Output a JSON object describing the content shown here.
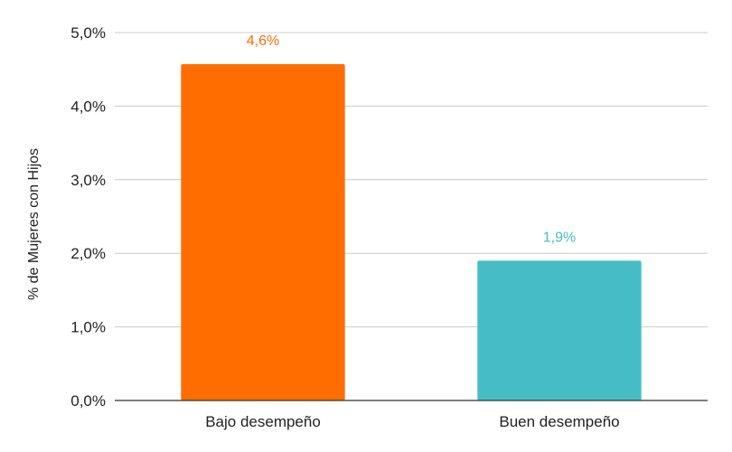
{
  "chart_data": {
    "type": "bar",
    "ylabel": "% de Mujeres con Hijos",
    "ylim": [
      0,
      5
    ],
    "grid": true,
    "y_ticks": [
      {
        "value": 0,
        "label": "0,0%"
      },
      {
        "value": 1,
        "label": "1,0%"
      },
      {
        "value": 2,
        "label": "2,0%"
      },
      {
        "value": 3,
        "label": "3,0%"
      },
      {
        "value": 4,
        "label": "4,0%"
      },
      {
        "value": 5,
        "label": "5,0%"
      }
    ],
    "categories": [
      "Bajo desempeño",
      "Buen desempeño"
    ],
    "values": [
      4.57,
      1.9
    ],
    "data_labels": [
      "4,6%",
      "1,9%"
    ],
    "colors": [
      "#ff6d01",
      "#46bdc6"
    ]
  }
}
